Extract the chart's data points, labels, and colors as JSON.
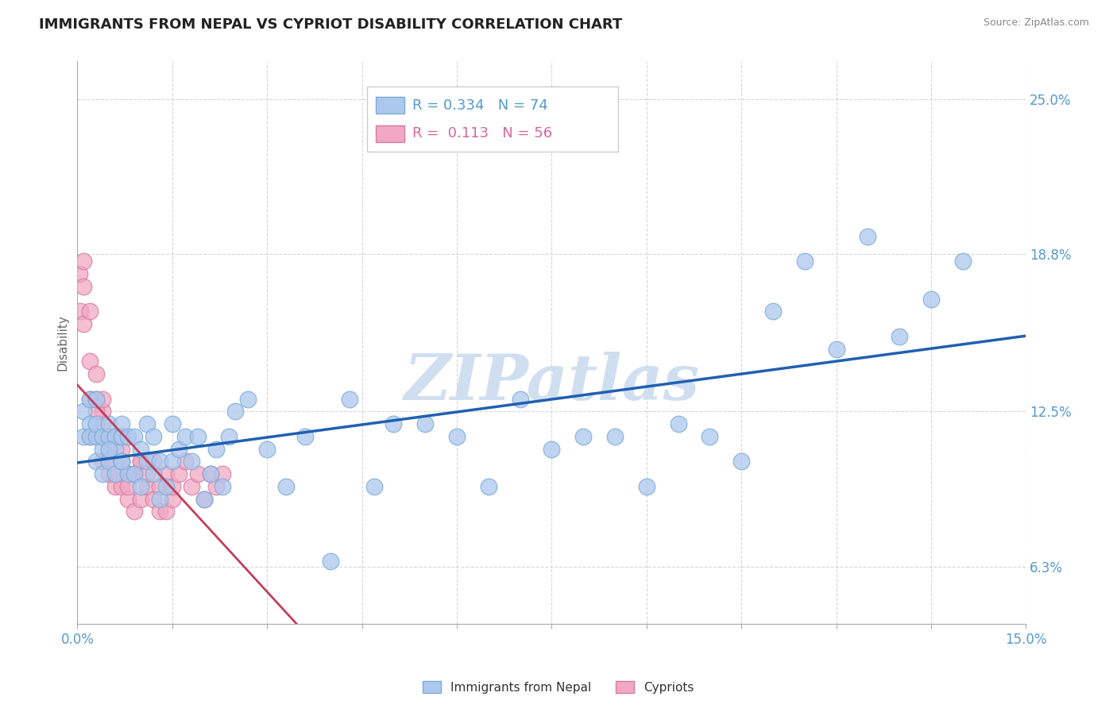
{
  "title": "IMMIGRANTS FROM NEPAL VS CYPRIOT DISABILITY CORRELATION CHART",
  "source": "Source: ZipAtlas.com",
  "ylabel": "Disability",
  "xlim": [
    0.0,
    0.15
  ],
  "ylim": [
    0.04,
    0.265
  ],
  "xtick_positions": [
    0.0,
    0.015,
    0.03,
    0.045,
    0.06,
    0.075,
    0.09,
    0.105,
    0.12,
    0.135,
    0.15
  ],
  "xticklabels": [
    "0.0%",
    "",
    "",
    "",
    "",
    "",
    "",
    "",
    "",
    "",
    "15.0%"
  ],
  "ytick_positions": [
    0.063,
    0.125,
    0.188,
    0.25
  ],
  "yticklabels": [
    "6.3%",
    "12.5%",
    "18.8%",
    "25.0%"
  ],
  "blue_color": "#adc8ef",
  "blue_edge": "#7aabd6",
  "pink_color": "#f2a8c2",
  "pink_edge": "#d67aa0",
  "blue_line_color": "#2060b0",
  "pink_line_color": "#c0405a",
  "watermark": "ZIPatlas",
  "watermark_color": "#d0dff0",
  "tick_color": "#5599cc",
  "nepal_x": [
    0.001,
    0.001,
    0.002,
    0.002,
    0.002,
    0.003,
    0.003,
    0.003,
    0.004,
    0.004,
    0.004,
    0.005,
    0.005,
    0.005,
    0.006,
    0.006,
    0.006,
    0.007,
    0.007,
    0.007,
    0.008,
    0.008,
    0.009,
    0.009,
    0.01,
    0.01,
    0.011,
    0.011,
    0.012,
    0.012,
    0.013,
    0.013,
    0.014,
    0.015,
    0.015,
    0.016,
    0.017,
    0.018,
    0.019,
    0.02,
    0.021,
    0.022,
    0.023,
    0.024,
    0.025,
    0.027,
    0.03,
    0.033,
    0.036,
    0.04,
    0.043,
    0.047,
    0.05,
    0.055,
    0.06,
    0.065,
    0.07,
    0.075,
    0.08,
    0.085,
    0.09,
    0.095,
    0.1,
    0.105,
    0.11,
    0.115,
    0.12,
    0.125,
    0.13,
    0.135,
    0.14,
    0.003,
    0.005,
    0.007
  ],
  "nepal_y": [
    0.115,
    0.125,
    0.12,
    0.13,
    0.115,
    0.105,
    0.115,
    0.12,
    0.1,
    0.11,
    0.115,
    0.105,
    0.115,
    0.12,
    0.1,
    0.11,
    0.115,
    0.105,
    0.115,
    0.12,
    0.1,
    0.115,
    0.1,
    0.115,
    0.095,
    0.11,
    0.105,
    0.12,
    0.1,
    0.115,
    0.09,
    0.105,
    0.095,
    0.105,
    0.12,
    0.11,
    0.115,
    0.105,
    0.115,
    0.09,
    0.1,
    0.11,
    0.095,
    0.115,
    0.125,
    0.13,
    0.11,
    0.095,
    0.115,
    0.065,
    0.13,
    0.095,
    0.12,
    0.12,
    0.115,
    0.095,
    0.13,
    0.11,
    0.115,
    0.115,
    0.095,
    0.12,
    0.115,
    0.105,
    0.165,
    0.185,
    0.15,
    0.195,
    0.155,
    0.17,
    0.185,
    0.13,
    0.11,
    0.105
  ],
  "cypriot_x": [
    0.0003,
    0.0005,
    0.001,
    0.001,
    0.001,
    0.002,
    0.002,
    0.002,
    0.003,
    0.003,
    0.003,
    0.004,
    0.004,
    0.004,
    0.005,
    0.005,
    0.005,
    0.006,
    0.006,
    0.006,
    0.007,
    0.007,
    0.007,
    0.008,
    0.008,
    0.009,
    0.009,
    0.01,
    0.01,
    0.011,
    0.012,
    0.013,
    0.014,
    0.015,
    0.002,
    0.003,
    0.004,
    0.005,
    0.006,
    0.007,
    0.008,
    0.009,
    0.01,
    0.011,
    0.012,
    0.013,
    0.014,
    0.015,
    0.016,
    0.017,
    0.018,
    0.019,
    0.02,
    0.021,
    0.022,
    0.023
  ],
  "cypriot_y": [
    0.18,
    0.165,
    0.16,
    0.175,
    0.185,
    0.13,
    0.145,
    0.165,
    0.115,
    0.13,
    0.14,
    0.105,
    0.12,
    0.125,
    0.1,
    0.11,
    0.115,
    0.095,
    0.105,
    0.115,
    0.095,
    0.11,
    0.115,
    0.09,
    0.1,
    0.085,
    0.1,
    0.09,
    0.105,
    0.095,
    0.09,
    0.085,
    0.085,
    0.09,
    0.115,
    0.125,
    0.13,
    0.105,
    0.1,
    0.105,
    0.095,
    0.1,
    0.105,
    0.1,
    0.105,
    0.095,
    0.1,
    0.095,
    0.1,
    0.105,
    0.095,
    0.1,
    0.09,
    0.1,
    0.095,
    0.1
  ]
}
